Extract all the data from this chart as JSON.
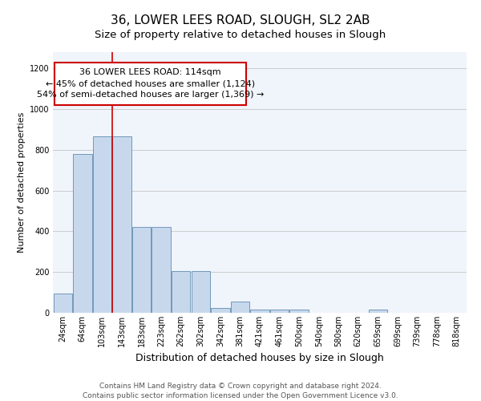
{
  "title1": "36, LOWER LEES ROAD, SLOUGH, SL2 2AB",
  "title2": "Size of property relative to detached houses in Slough",
  "xlabel": "Distribution of detached houses by size in Slough",
  "ylabel": "Number of detached properties",
  "bin_labels": [
    "24sqm",
    "64sqm",
    "103sqm",
    "143sqm",
    "183sqm",
    "223sqm",
    "262sqm",
    "302sqm",
    "342sqm",
    "381sqm",
    "421sqm",
    "461sqm",
    "500sqm",
    "540sqm",
    "580sqm",
    "620sqm",
    "659sqm",
    "699sqm",
    "739sqm",
    "778sqm",
    "818sqm"
  ],
  "bar_values": [
    95,
    780,
    865,
    865,
    420,
    420,
    205,
    205,
    25,
    55,
    15,
    15,
    15,
    0,
    0,
    0,
    15,
    0,
    0,
    0,
    0
  ],
  "bar_color": "#c8d8ec",
  "bar_edge_color": "#7099bb",
  "grid_color": "#cccccc",
  "background_color": "#ffffff",
  "plot_bg_color": "#f0f4fb",
  "red_line_bin_index": 2,
  "annotation_text": "36 LOWER LEES ROAD: 114sqm\n← 45% of detached houses are smaller (1,124)\n54% of semi-detached houses are larger (1,369) →",
  "annotation_box_color": "#ffffff",
  "annotation_border_color": "#cc0000",
  "ylim": [
    0,
    1280
  ],
  "yticks": [
    0,
    200,
    400,
    600,
    800,
    1000,
    1200
  ],
  "footer_text": "Contains HM Land Registry data © Crown copyright and database right 2024.\nContains public sector information licensed under the Open Government Licence v3.0.",
  "title1_fontsize": 11,
  "title2_fontsize": 9.5,
  "xlabel_fontsize": 9,
  "ylabel_fontsize": 8,
  "tick_fontsize": 7,
  "annotation_fontsize": 8,
  "footer_fontsize": 6.5
}
